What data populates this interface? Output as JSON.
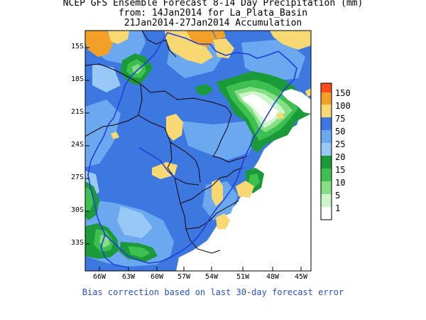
{
  "title": {
    "line1": "NCEP GFS Ensemble Forecast 8-14 Day Precipitation (mm)",
    "line2": "from: 14Jan2014   for La_Plata_Basin",
    "line3": "21Jan2014-27Jan2014 Accumulation"
  },
  "lat_labels": [
    "15S",
    "18S",
    "21S",
    "24S",
    "27S",
    "30S",
    "33S"
  ],
  "lon_labels": [
    "66W",
    "63W",
    "60W",
    "57W",
    "54W",
    "51W",
    "48W",
    "45W"
  ],
  "legend": {
    "labels": [
      "150",
      "100",
      "75",
      "50",
      "25",
      "20",
      "15",
      "10",
      "5",
      "1"
    ],
    "colors": [
      "#ff4a1a",
      "#f2a028",
      "#f8d873",
      "#3c78df",
      "#6ba8ef",
      "#98c8f6",
      "#1a9a38",
      "#3ec050",
      "#86df85",
      "#ccf5c8",
      "#ffffff"
    ]
  },
  "footer": "Bias correction based on last 30-day forecast error"
}
